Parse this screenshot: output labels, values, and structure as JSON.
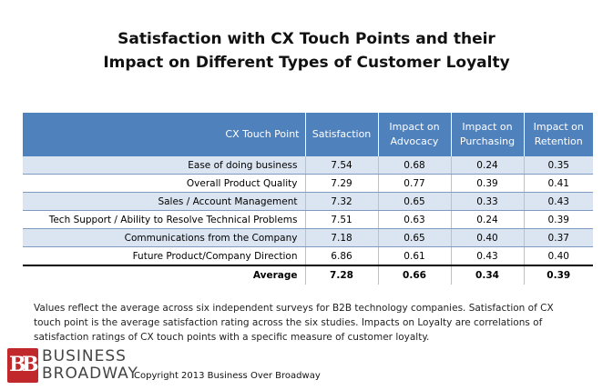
{
  "title": {
    "line1": "Satisfaction with CX Touch Points and their",
    "line2": "Impact on Different Types of Customer Loyalty"
  },
  "table": {
    "headers": {
      "point": "CX Touch Point",
      "satisfaction": "Satisfaction",
      "advocacy_1": "Impact on",
      "advocacy_2": "Advocacy",
      "purchasing_1": "Impact on",
      "purchasing_2": "Purchasing",
      "retention_1": "Impact on",
      "retention_2": "Retention"
    },
    "rows": [
      {
        "point": "Ease of doing business",
        "satisfaction": "7.54",
        "advocacy": "0.68",
        "purchasing": "0.24",
        "retention": "0.35"
      },
      {
        "point": "Overall Product Quality",
        "satisfaction": "7.29",
        "advocacy": "0.77",
        "purchasing": "0.39",
        "retention": "0.41"
      },
      {
        "point": "Sales / Account Management",
        "satisfaction": "7.32",
        "advocacy": "0.65",
        "purchasing": "0.33",
        "retention": "0.43"
      },
      {
        "point": "Tech Support / Ability to Resolve Technical Problems",
        "satisfaction": "7.51",
        "advocacy": "0.63",
        "purchasing": "0.24",
        "retention": "0.39"
      },
      {
        "point": "Communications from the Company",
        "satisfaction": "7.18",
        "advocacy": "0.65",
        "purchasing": "0.40",
        "retention": "0.37"
      },
      {
        "point": "Future Product/Company Direction",
        "satisfaction": "6.86",
        "advocacy": "0.61",
        "purchasing": "0.43",
        "retention": "0.40"
      }
    ],
    "average": {
      "point": "Average",
      "satisfaction": "7.28",
      "advocacy": "0.66",
      "purchasing": "0.34",
      "retention": "0.39"
    }
  },
  "note": {
    "line1": "Values reflect the average across six independent surveys for B2B technology companies. Satisfaction of CX",
    "line2": "touch point is the average satisfaction rating across the six studies. Impacts on Loyalty are correlations of",
    "line3": "satisfaction ratings of CX touch points with a specific measure of customer loyalty."
  },
  "footer": {
    "logo_letters_1": "B",
    "logo_letters_2": "B",
    "brand_line1": "BUSINESS",
    "brand_line2": "BROADWAY",
    "copyright": "Copyright 2013 Business Over Broadway",
    "logo_color": "#c0282b"
  },
  "colors": {
    "header_bg": "#4f81bd",
    "band_bg": "#dbe5f1"
  }
}
